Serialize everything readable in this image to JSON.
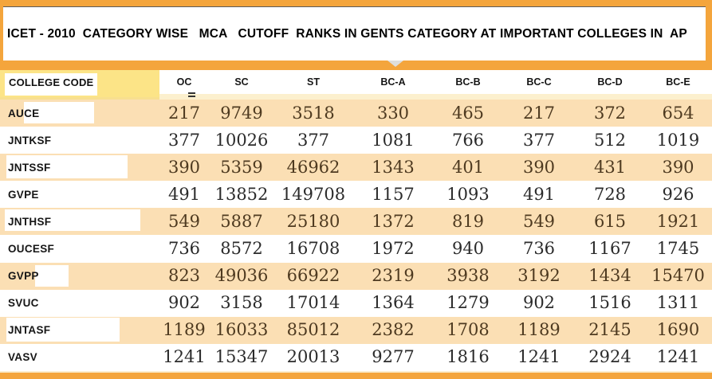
{
  "title": "ICET - 2010  CATEGORY WISE   MCA   CUTOFF  RANKS IN GENTS CATEGORY AT IMPORTANT COLLEGES IN  AP",
  "table": {
    "college_code_header": "COLLEGE CODE",
    "columns": [
      "OC",
      "SC",
      "ST",
      "BC-A",
      "BC-B",
      "BC-C",
      "BC-D",
      "BC-E"
    ],
    "rows": [
      {
        "code": "AUCE",
        "values": [
          217,
          9749,
          3518,
          330,
          465,
          217,
          372,
          654
        ]
      },
      {
        "code": "JNTKSF",
        "values": [
          377,
          10026,
          377,
          1081,
          766,
          377,
          512,
          1019
        ]
      },
      {
        "code": "JNTSSF",
        "values": [
          390,
          5359,
          46962,
          1343,
          401,
          390,
          431,
          390
        ]
      },
      {
        "code": "GVPE",
        "values": [
          491,
          13852,
          149708,
          1157,
          1093,
          491,
          728,
          926
        ]
      },
      {
        "code": "JNTHSF",
        "values": [
          549,
          5887,
          25180,
          1372,
          819,
          549,
          615,
          1921
        ]
      },
      {
        "code": "OUCESF",
        "values": [
          736,
          8572,
          16708,
          1972,
          940,
          736,
          1167,
          1745
        ]
      },
      {
        "code": "GVPP",
        "values": [
          823,
          49036,
          66922,
          2319,
          3938,
          3192,
          1434,
          15470
        ]
      },
      {
        "code": "SVUC",
        "values": [
          902,
          3158,
          17014,
          1364,
          1279,
          902,
          1516,
          1311
        ]
      },
      {
        "code": "JNTASF",
        "values": [
          1189,
          16033,
          85012,
          2382,
          1708,
          1189,
          2145,
          1690
        ]
      },
      {
        "code": "VASV",
        "values": [
          1241,
          15347,
          20013,
          9277,
          1816,
          1241,
          2924,
          1241
        ]
      }
    ]
  },
  "colors": {
    "accent_orange": "#F4A53C",
    "header_yellow": "#FCE487",
    "row_peach": "#FBDFB4",
    "title_text": "#000000"
  }
}
